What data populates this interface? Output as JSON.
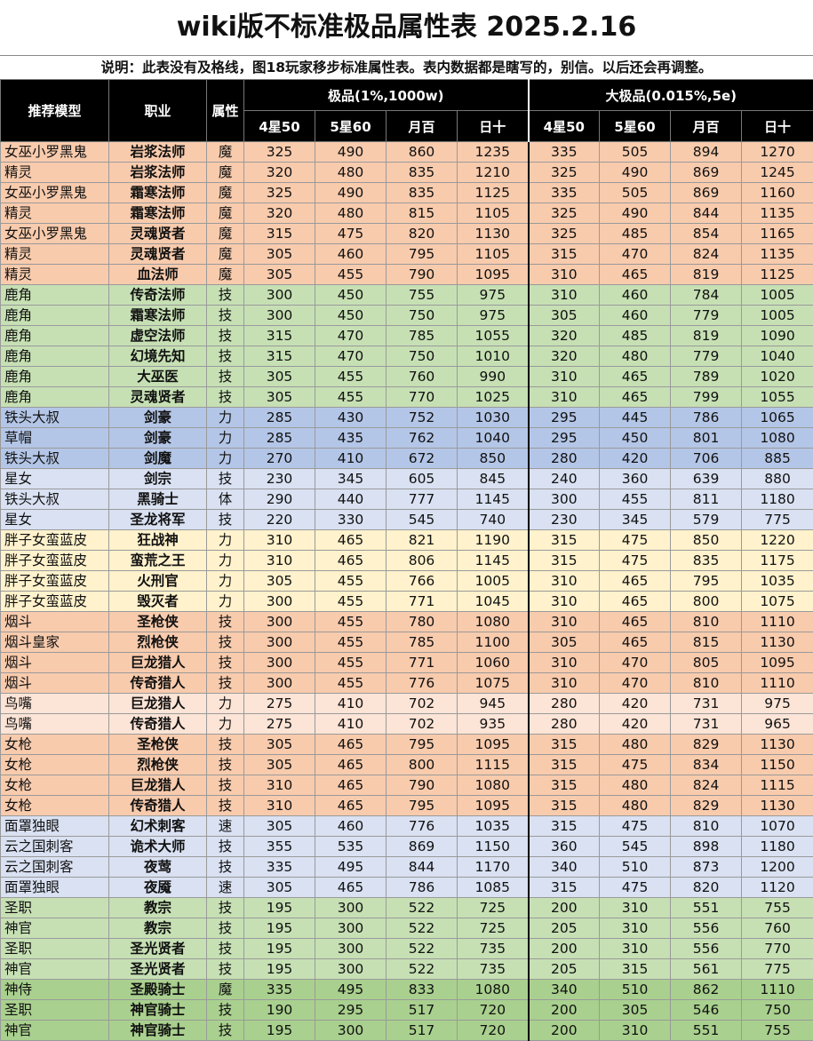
{
  "title": "wiki版不标准极品属性表 2025.2.16",
  "note": "说明：此表没有及格线，图18玩家移步标准属性表。表内数据都是瞎写的，别信。以后还会再调整。",
  "header": {
    "model": "推荐模型",
    "job": "职业",
    "attr": "属性",
    "group1": "极品(1%,1000w)",
    "group2": "大极品(0.015%,5e)",
    "cols": [
      "4星50",
      "5星60",
      "月百",
      "日十",
      "4星50",
      "5星60",
      "月百",
      "日十"
    ]
  },
  "colors": {
    "orange": "#f8cbad",
    "green": "#c6e0b4",
    "blue": "#b4c6e7",
    "lavender": "#d9e1f2",
    "yellow": "#fff2cc",
    "peach": "#fce4d6",
    "deepgreen": "#a9d08e"
  },
  "rows": [
    {
      "model": "女巫小罗黑鬼",
      "job": "岩浆法师",
      "attr": "魔",
      "vals": [
        "325",
        "490",
        "860",
        "1235",
        "335",
        "505",
        "894",
        "1270"
      ],
      "color": "orange"
    },
    {
      "model": "精灵",
      "job": "岩浆法师",
      "attr": "魔",
      "vals": [
        "320",
        "480",
        "835",
        "1210",
        "325",
        "490",
        "869",
        "1245"
      ],
      "color": "orange"
    },
    {
      "model": "女巫小罗黑鬼",
      "job": "霜寒法师",
      "attr": "魔",
      "vals": [
        "325",
        "490",
        "835",
        "1125",
        "335",
        "505",
        "869",
        "1160"
      ],
      "color": "orange"
    },
    {
      "model": "精灵",
      "job": "霜寒法师",
      "attr": "魔",
      "vals": [
        "320",
        "480",
        "815",
        "1105",
        "325",
        "490",
        "844",
        "1135"
      ],
      "color": "orange"
    },
    {
      "model": "女巫小罗黑鬼",
      "job": "灵魂贤者",
      "attr": "魔",
      "vals": [
        "315",
        "475",
        "820",
        "1130",
        "325",
        "485",
        "854",
        "1165"
      ],
      "color": "orange"
    },
    {
      "model": "精灵",
      "job": "灵魂贤者",
      "attr": "魔",
      "vals": [
        "305",
        "460",
        "795",
        "1105",
        "315",
        "470",
        "824",
        "1135"
      ],
      "color": "orange"
    },
    {
      "model": "精灵",
      "job": "血法师",
      "attr": "魔",
      "vals": [
        "305",
        "455",
        "790",
        "1095",
        "310",
        "465",
        "819",
        "1125"
      ],
      "color": "orange"
    },
    {
      "model": "鹿角",
      "job": "传奇法师",
      "attr": "技",
      "vals": [
        "300",
        "450",
        "755",
        "975",
        "310",
        "460",
        "784",
        "1005"
      ],
      "color": "green"
    },
    {
      "model": "鹿角",
      "job": "霜寒法师",
      "attr": "技",
      "vals": [
        "300",
        "450",
        "750",
        "975",
        "305",
        "460",
        "779",
        "1005"
      ],
      "color": "green"
    },
    {
      "model": "鹿角",
      "job": "虚空法师",
      "attr": "技",
      "vals": [
        "315",
        "470",
        "785",
        "1055",
        "320",
        "485",
        "819",
        "1090"
      ],
      "color": "green"
    },
    {
      "model": "鹿角",
      "job": "幻境先知",
      "attr": "技",
      "vals": [
        "315",
        "470",
        "750",
        "1010",
        "320",
        "480",
        "779",
        "1040"
      ],
      "color": "green"
    },
    {
      "model": "鹿角",
      "job": "大巫医",
      "attr": "技",
      "vals": [
        "305",
        "455",
        "760",
        "990",
        "310",
        "465",
        "789",
        "1020"
      ],
      "color": "green"
    },
    {
      "model": "鹿角",
      "job": "灵魂贤者",
      "attr": "技",
      "vals": [
        "305",
        "455",
        "770",
        "1025",
        "310",
        "465",
        "799",
        "1055"
      ],
      "color": "green"
    },
    {
      "model": "铁头大叔",
      "job": "剑豪",
      "attr": "力",
      "vals": [
        "285",
        "430",
        "752",
        "1030",
        "295",
        "445",
        "786",
        "1065"
      ],
      "color": "blue"
    },
    {
      "model": "草帽",
      "job": "剑豪",
      "attr": "力",
      "vals": [
        "285",
        "435",
        "762",
        "1040",
        "295",
        "450",
        "801",
        "1080"
      ],
      "color": "blue"
    },
    {
      "model": "铁头大叔",
      "job": "剑魔",
      "attr": "力",
      "vals": [
        "270",
        "410",
        "672",
        "850",
        "280",
        "420",
        "706",
        "885"
      ],
      "color": "blue"
    },
    {
      "model": "星女",
      "job": "剑宗",
      "attr": "技",
      "vals": [
        "230",
        "345",
        "605",
        "845",
        "240",
        "360",
        "639",
        "880"
      ],
      "color": "lavender"
    },
    {
      "model": "铁头大叔",
      "job": "黑骑士",
      "attr": "体",
      "vals": [
        "290",
        "440",
        "777",
        "1145",
        "300",
        "455",
        "811",
        "1180"
      ],
      "color": "lavender"
    },
    {
      "model": "星女",
      "job": "圣龙将军",
      "attr": "技",
      "vals": [
        "220",
        "330",
        "545",
        "740",
        "230",
        "345",
        "579",
        "775"
      ],
      "color": "lavender"
    },
    {
      "model": "胖子女蛮蓝皮",
      "job": "狂战神",
      "attr": "力",
      "vals": [
        "310",
        "465",
        "821",
        "1190",
        "315",
        "475",
        "850",
        "1220"
      ],
      "color": "yellow"
    },
    {
      "model": "胖子女蛮蓝皮",
      "job": "蛮荒之王",
      "attr": "力",
      "vals": [
        "310",
        "465",
        "806",
        "1145",
        "315",
        "475",
        "835",
        "1175"
      ],
      "color": "yellow"
    },
    {
      "model": "胖子女蛮蓝皮",
      "job": "火刑官",
      "attr": "力",
      "vals": [
        "305",
        "455",
        "766",
        "1005",
        "310",
        "465",
        "795",
        "1035"
      ],
      "color": "yellow"
    },
    {
      "model": "胖子女蛮蓝皮",
      "job": "毁灭者",
      "attr": "力",
      "vals": [
        "300",
        "455",
        "771",
        "1045",
        "310",
        "465",
        "800",
        "1075"
      ],
      "color": "yellow"
    },
    {
      "model": "烟斗",
      "job": "圣枪侠",
      "attr": "技",
      "vals": [
        "300",
        "455",
        "780",
        "1080",
        "310",
        "465",
        "810",
        "1110"
      ],
      "color": "orange"
    },
    {
      "model": "烟斗皇家",
      "job": "烈枪侠",
      "attr": "技",
      "vals": [
        "300",
        "455",
        "785",
        "1100",
        "305",
        "465",
        "815",
        "1130"
      ],
      "color": "orange"
    },
    {
      "model": "烟斗",
      "job": "巨龙猎人",
      "attr": "技",
      "vals": [
        "300",
        "455",
        "771",
        "1060",
        "310",
        "470",
        "805",
        "1095"
      ],
      "color": "orange"
    },
    {
      "model": "烟斗",
      "job": "传奇猎人",
      "attr": "技",
      "vals": [
        "300",
        "455",
        "776",
        "1075",
        "310",
        "470",
        "810",
        "1110"
      ],
      "color": "orange"
    },
    {
      "model": "鸟嘴",
      "job": "巨龙猎人",
      "attr": "力",
      "vals": [
        "275",
        "410",
        "702",
        "945",
        "280",
        "420",
        "731",
        "975"
      ],
      "color": "peach"
    },
    {
      "model": "鸟嘴",
      "job": "传奇猎人",
      "attr": "力",
      "vals": [
        "275",
        "410",
        "702",
        "935",
        "280",
        "420",
        "731",
        "965"
      ],
      "color": "peach"
    },
    {
      "model": "女枪",
      "job": "圣枪侠",
      "attr": "技",
      "vals": [
        "305",
        "465",
        "795",
        "1095",
        "315",
        "480",
        "829",
        "1130"
      ],
      "color": "orange"
    },
    {
      "model": "女枪",
      "job": "烈枪侠",
      "attr": "技",
      "vals": [
        "305",
        "465",
        "800",
        "1115",
        "315",
        "475",
        "834",
        "1150"
      ],
      "color": "orange"
    },
    {
      "model": "女枪",
      "job": "巨龙猎人",
      "attr": "技",
      "vals": [
        "310",
        "465",
        "790",
        "1080",
        "315",
        "480",
        "824",
        "1115"
      ],
      "color": "orange"
    },
    {
      "model": "女枪",
      "job": "传奇猎人",
      "attr": "技",
      "vals": [
        "310",
        "465",
        "795",
        "1095",
        "315",
        "480",
        "829",
        "1130"
      ],
      "color": "orange"
    },
    {
      "model": "面罩独眼",
      "job": "幻术刺客",
      "attr": "速",
      "vals": [
        "305",
        "460",
        "776",
        "1035",
        "315",
        "475",
        "810",
        "1070"
      ],
      "color": "lavender"
    },
    {
      "model": "云之国刺客",
      "job": "诡术大师",
      "attr": "技",
      "vals": [
        "355",
        "535",
        "869",
        "1150",
        "360",
        "545",
        "898",
        "1180"
      ],
      "color": "lavender"
    },
    {
      "model": "云之国刺客",
      "job": "夜莺",
      "attr": "技",
      "vals": [
        "335",
        "495",
        "844",
        "1170",
        "340",
        "510",
        "873",
        "1200"
      ],
      "color": "lavender"
    },
    {
      "model": "面罩独眼",
      "job": "夜魇",
      "attr": "速",
      "vals": [
        "305",
        "465",
        "786",
        "1085",
        "315",
        "475",
        "820",
        "1120"
      ],
      "color": "lavender"
    },
    {
      "model": "圣职",
      "job": "教宗",
      "attr": "技",
      "vals": [
        "195",
        "300",
        "522",
        "725",
        "200",
        "310",
        "551",
        "755"
      ],
      "color": "green"
    },
    {
      "model": "神官",
      "job": "教宗",
      "attr": "技",
      "vals": [
        "195",
        "300",
        "522",
        "725",
        "205",
        "310",
        "556",
        "760"
      ],
      "color": "green"
    },
    {
      "model": "圣职",
      "job": "圣光贤者",
      "attr": "技",
      "vals": [
        "195",
        "300",
        "522",
        "735",
        "200",
        "310",
        "556",
        "770"
      ],
      "color": "green"
    },
    {
      "model": "神官",
      "job": "圣光贤者",
      "attr": "技",
      "vals": [
        "195",
        "300",
        "522",
        "735",
        "205",
        "315",
        "561",
        "775"
      ],
      "color": "green"
    },
    {
      "model": "神侍",
      "job": "圣殿骑士",
      "attr": "魔",
      "vals": [
        "335",
        "495",
        "833",
        "1080",
        "340",
        "510",
        "862",
        "1110"
      ],
      "color": "deepgreen"
    },
    {
      "model": "圣职",
      "job": "神官骑士",
      "attr": "技",
      "vals": [
        "190",
        "295",
        "517",
        "720",
        "200",
        "305",
        "546",
        "750"
      ],
      "color": "deepgreen"
    },
    {
      "model": "神官",
      "job": "神官骑士",
      "attr": "技",
      "vals": [
        "195",
        "300",
        "517",
        "720",
        "200",
        "310",
        "551",
        "755"
      ],
      "color": "deepgreen"
    }
  ]
}
